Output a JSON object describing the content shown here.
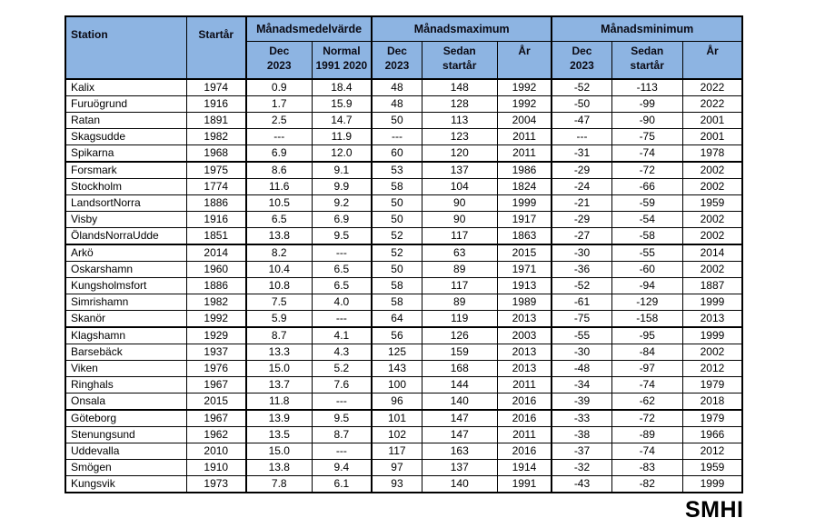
{
  "document": {
    "logo": "SMHI"
  },
  "table": {
    "header": {
      "station": "Station",
      "startar": "Startår",
      "groups": [
        {
          "label": "Månadsmedelvärde",
          "sub": [
            [
              "Dec",
              "2023"
            ],
            [
              "Normal",
              "1991 2020"
            ]
          ]
        },
        {
          "label": "Månadsmaximum",
          "sub": [
            [
              "Dec",
              "2023"
            ],
            [
              "Sedan",
              "startår"
            ],
            [
              "År"
            ]
          ]
        },
        {
          "label": "Månadsminimum",
          "sub": [
            [
              "Dec",
              "2023"
            ],
            [
              "Sedan",
              "startår"
            ],
            [
              "År"
            ]
          ]
        }
      ]
    },
    "row_groups": [
      [
        [
          "Kalix",
          "1974",
          "0.9",
          "18.4",
          "48",
          "148",
          "1992",
          "-52",
          "-113",
          "2022"
        ],
        [
          "Furuögrund",
          "1916",
          "1.7",
          "15.9",
          "48",
          "128",
          "1992",
          "-50",
          "-99",
          "2022"
        ],
        [
          "Ratan",
          "1891",
          "2.5",
          "14.7",
          "50",
          "113",
          "2004",
          "-47",
          "-90",
          "2001"
        ],
        [
          "Skagsudde",
          "1982",
          "---",
          "11.9",
          "---",
          "123",
          "2011",
          "---",
          "-75",
          "2001"
        ],
        [
          "Spikarna",
          "1968",
          "6.9",
          "12.0",
          "60",
          "120",
          "2011",
          "-31",
          "-74",
          "1978"
        ]
      ],
      [
        [
          "Forsmark",
          "1975",
          "8.6",
          "9.1",
          "53",
          "137",
          "1986",
          "-29",
          "-72",
          "2002"
        ],
        [
          "Stockholm",
          "1774",
          "11.6",
          "9.9",
          "58",
          "104",
          "1824",
          "-24",
          "-66",
          "2002"
        ],
        [
          "LandsortNorra",
          "1886",
          "10.5",
          "9.2",
          "50",
          "90",
          "1999",
          "-21",
          "-59",
          "1959"
        ],
        [
          "Visby",
          "1916",
          "6.5",
          "6.9",
          "50",
          "90",
          "1917",
          "-29",
          "-54",
          "2002"
        ],
        [
          "ÖlandsNorraUdde",
          "1851",
          "13.8",
          "9.5",
          "52",
          "117",
          "1863",
          "-27",
          "-58",
          "2002"
        ]
      ],
      [
        [
          "Arkö",
          "2014",
          "8.2",
          "---",
          "52",
          "63",
          "2015",
          "-30",
          "-55",
          "2014"
        ],
        [
          "Oskarshamn",
          "1960",
          "10.4",
          "6.5",
          "50",
          "89",
          "1971",
          "-36",
          "-60",
          "2002"
        ],
        [
          "Kungsholmsfort",
          "1886",
          "10.8",
          "6.5",
          "58",
          "117",
          "1913",
          "-52",
          "-94",
          "1887"
        ],
        [
          "Simrishamn",
          "1982",
          "7.5",
          "4.0",
          "58",
          "89",
          "1989",
          "-61",
          "-129",
          "1999"
        ],
        [
          "Skanör",
          "1992",
          "5.9",
          "---",
          "64",
          "119",
          "2013",
          "-75",
          "-158",
          "2013"
        ]
      ],
      [
        [
          "Klagshamn",
          "1929",
          "8.7",
          "4.1",
          "56",
          "126",
          "2003",
          "-55",
          "-95",
          "1999"
        ],
        [
          "Barsebäck",
          "1937",
          "13.3",
          "4.3",
          "125",
          "159",
          "2013",
          "-30",
          "-84",
          "2002"
        ],
        [
          "Viken",
          "1976",
          "15.0",
          "5.2",
          "143",
          "168",
          "2013",
          "-48",
          "-97",
          "2012"
        ],
        [
          "Ringhals",
          "1967",
          "13.7",
          "7.6",
          "100",
          "144",
          "2011",
          "-34",
          "-74",
          "1979"
        ],
        [
          "Onsala",
          "2015",
          "11.8",
          "---",
          "96",
          "140",
          "2016",
          "-39",
          "-62",
          "2018"
        ]
      ],
      [
        [
          "Göteborg",
          "1967",
          "13.9",
          "9.5",
          "101",
          "147",
          "2016",
          "-33",
          "-72",
          "1979"
        ],
        [
          "Stenungsund",
          "1962",
          "13.5",
          "8.7",
          "102",
          "147",
          "2011",
          "-38",
          "-89",
          "1966"
        ],
        [
          "Uddevalla",
          "2010",
          "15.0",
          "---",
          "117",
          "163",
          "2016",
          "-37",
          "-74",
          "2012"
        ],
        [
          "Smögen",
          "1910",
          "13.8",
          "9.4",
          "97",
          "137",
          "1914",
          "-32",
          "-83",
          "1959"
        ],
        [
          "Kungsvik",
          "1973",
          "7.8",
          "6.1",
          "93",
          "140",
          "1991",
          "-43",
          "-82",
          "1999"
        ]
      ]
    ]
  }
}
